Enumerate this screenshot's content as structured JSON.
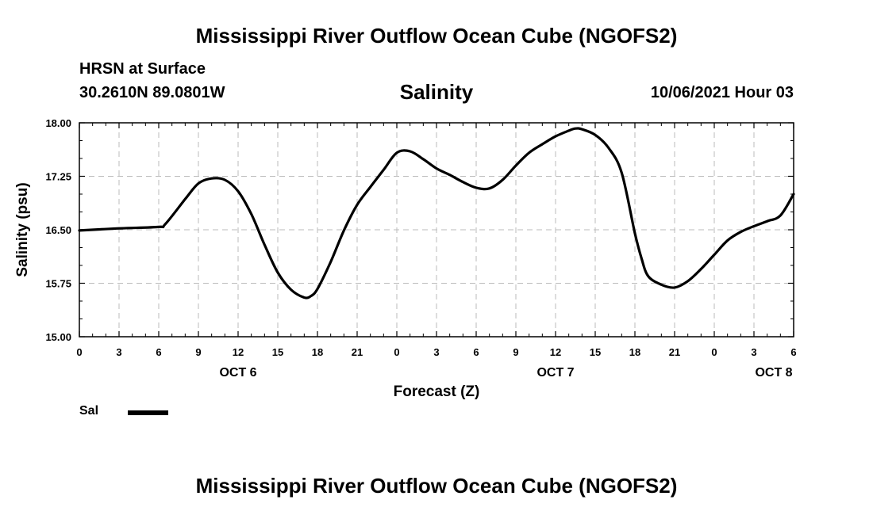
{
  "header": {
    "title": "Mississippi River Outflow Ocean Cube (NGOFS2)",
    "station": "HRSN at Surface",
    "coords": "30.2610N  89.0801W",
    "variable": "Salinity",
    "datetime": "10/06/2021 Hour 03"
  },
  "footer": {
    "title": "Mississippi River Outflow Ocean Cube (NGOFS2)"
  },
  "legend": {
    "label": "Sal"
  },
  "chart_data": {
    "type": "line",
    "title": "Salinity",
    "xlabel": "Forecast (Z)",
    "ylabel": "Salinity (psu)",
    "xlim": [
      0,
      54
    ],
    "ylim": [
      15.0,
      18.0
    ],
    "grid": true,
    "legend_position": "bottom-left",
    "y_ticks": [
      "15.00",
      "15.75",
      "16.50",
      "17.25",
      "18.00"
    ],
    "x_ticks": [
      "0",
      "3",
      "6",
      "9",
      "12",
      "15",
      "18",
      "21",
      "0",
      "3",
      "6",
      "9",
      "12",
      "15",
      "18",
      "21",
      "0",
      "3",
      "6"
    ],
    "date_labels": [
      {
        "label": "OCT 6",
        "hour": 12
      },
      {
        "label": "OCT 7",
        "hour": 36
      },
      {
        "label": "OCT 8",
        "hour": 52.5
      }
    ],
    "series": [
      {
        "name": "Sal",
        "color": "#000000",
        "x": [
          0,
          3,
          6,
          6.5,
          8,
          9,
          10,
          11,
          12,
          13,
          14,
          15,
          16,
          17,
          17.5,
          18,
          19,
          20,
          21,
          22,
          23,
          24,
          25,
          26,
          27,
          28,
          29,
          30,
          31,
          32,
          33,
          34,
          35,
          36,
          37,
          37.5,
          38,
          39,
          40,
          41,
          42,
          42.5,
          43,
          44,
          45,
          46,
          47,
          48,
          49,
          50,
          51,
          52,
          53,
          54
        ],
        "y": [
          16.49,
          16.52,
          16.54,
          16.58,
          16.93,
          17.15,
          17.22,
          17.2,
          17.04,
          16.72,
          16.29,
          15.9,
          15.66,
          15.55,
          15.57,
          15.67,
          16.05,
          16.49,
          16.85,
          17.1,
          17.34,
          17.58,
          17.6,
          17.49,
          17.36,
          17.27,
          17.17,
          17.09,
          17.08,
          17.2,
          17.4,
          17.58,
          17.7,
          17.81,
          17.89,
          17.92,
          17.91,
          17.83,
          17.65,
          17.3,
          16.45,
          16.1,
          15.85,
          15.73,
          15.69,
          15.78,
          15.95,
          16.15,
          16.35,
          16.47,
          16.55,
          16.62,
          16.7,
          17.0
        ]
      }
    ]
  }
}
